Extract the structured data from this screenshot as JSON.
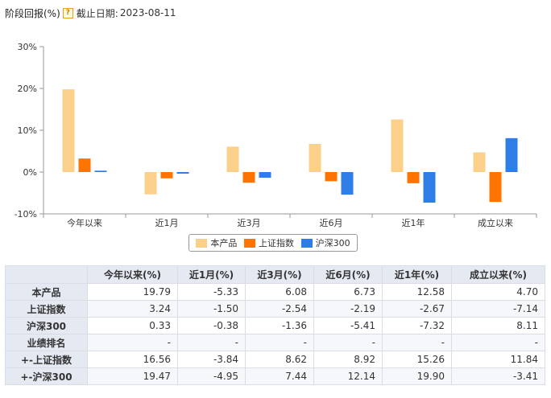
{
  "header": {
    "title": "阶段回报(%)",
    "help_icon": "?",
    "date_label": "截止日期:",
    "date_value": "2023-08-11"
  },
  "colors": {
    "product": "#fbd08a",
    "sh_index": "#ff7300",
    "hs300": "#2f7ee8",
    "axis": "#999999",
    "gridline": "#e6e6e6"
  },
  "chart_data": {
    "type": "bar",
    "categories": [
      "今年以来",
      "近1月",
      "近3月",
      "近6月",
      "近1年",
      "成立以来"
    ],
    "series": [
      {
        "name": "本产品",
        "values": [
          19.79,
          -5.33,
          6.08,
          6.73,
          12.58,
          4.7
        ]
      },
      {
        "name": "上证指数",
        "values": [
          3.24,
          -1.5,
          -2.54,
          -2.19,
          -2.67,
          -7.14
        ]
      },
      {
        "name": "沪深300",
        "values": [
          0.33,
          -0.38,
          -1.36,
          -5.41,
          -7.32,
          8.11
        ]
      }
    ],
    "yticks": [
      "30%",
      "20%",
      "10%",
      "0%",
      "-10%"
    ],
    "ylim": [
      -10,
      30
    ],
    "grid": false,
    "legend_position": "bottom"
  },
  "table": {
    "columns": [
      "",
      "今年以来(%)",
      "近1月(%)",
      "近3月(%)",
      "近6月(%)",
      "近1年(%)",
      "成立以来(%)"
    ],
    "rows": [
      {
        "label": "本产品",
        "cells": [
          "19.79",
          "-5.33",
          "6.08",
          "6.73",
          "12.58",
          "4.70"
        ]
      },
      {
        "label": "上证指数",
        "cells": [
          "3.24",
          "-1.50",
          "-2.54",
          "-2.19",
          "-2.67",
          "-7.14"
        ]
      },
      {
        "label": "沪深300",
        "cells": [
          "0.33",
          "-0.38",
          "-1.36",
          "-5.41",
          "-7.32",
          "8.11"
        ]
      },
      {
        "label": "业绩排名",
        "cells": [
          "-",
          "-",
          "-",
          "-",
          "-",
          "-"
        ]
      },
      {
        "label": "+-上证指数",
        "cells": [
          "16.56",
          "-3.84",
          "8.62",
          "8.92",
          "15.26",
          "11.84"
        ]
      },
      {
        "label": "+-沪深300",
        "cells": [
          "19.47",
          "-4.95",
          "7.44",
          "12.14",
          "19.90",
          "-3.41"
        ]
      }
    ]
  }
}
